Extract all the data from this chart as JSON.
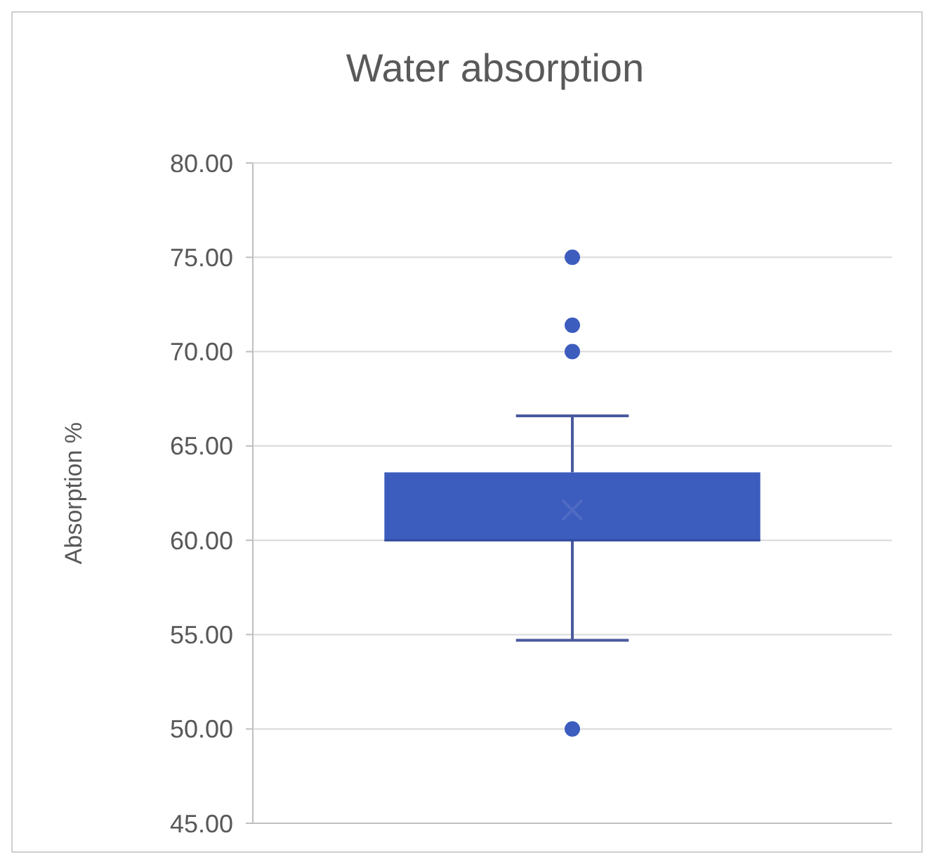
{
  "chart_data": {
    "type": "box",
    "title": "Water absorption",
    "ylabel": "Absorption %",
    "categories": [
      null
    ],
    "series": [
      {
        "color": "#3c5cbe",
        "boxes": [
          {
            "low": 54.7,
            "q1": 60,
            "median": 60,
            "q3": 63.6,
            "high": 66.6,
            "mean": 61.6,
            "outliers": [
              75,
              71.4,
              70,
              50
            ]
          }
        ]
      }
    ],
    "ylim": [
      45,
      80
    ],
    "yticks": [
      {
        "value": 45,
        "label": "45.00"
      },
      {
        "value": 50,
        "label": "50.00"
      },
      {
        "value": 55,
        "label": "55.00"
      },
      {
        "value": 60,
        "label": "60.00"
      },
      {
        "value": 65,
        "label": "65.00"
      },
      {
        "value": 70,
        "label": "70.00"
      },
      {
        "value": 75,
        "label": "75.00"
      },
      {
        "value": 80,
        "label": "80.00"
      }
    ],
    "grid": "y"
  }
}
